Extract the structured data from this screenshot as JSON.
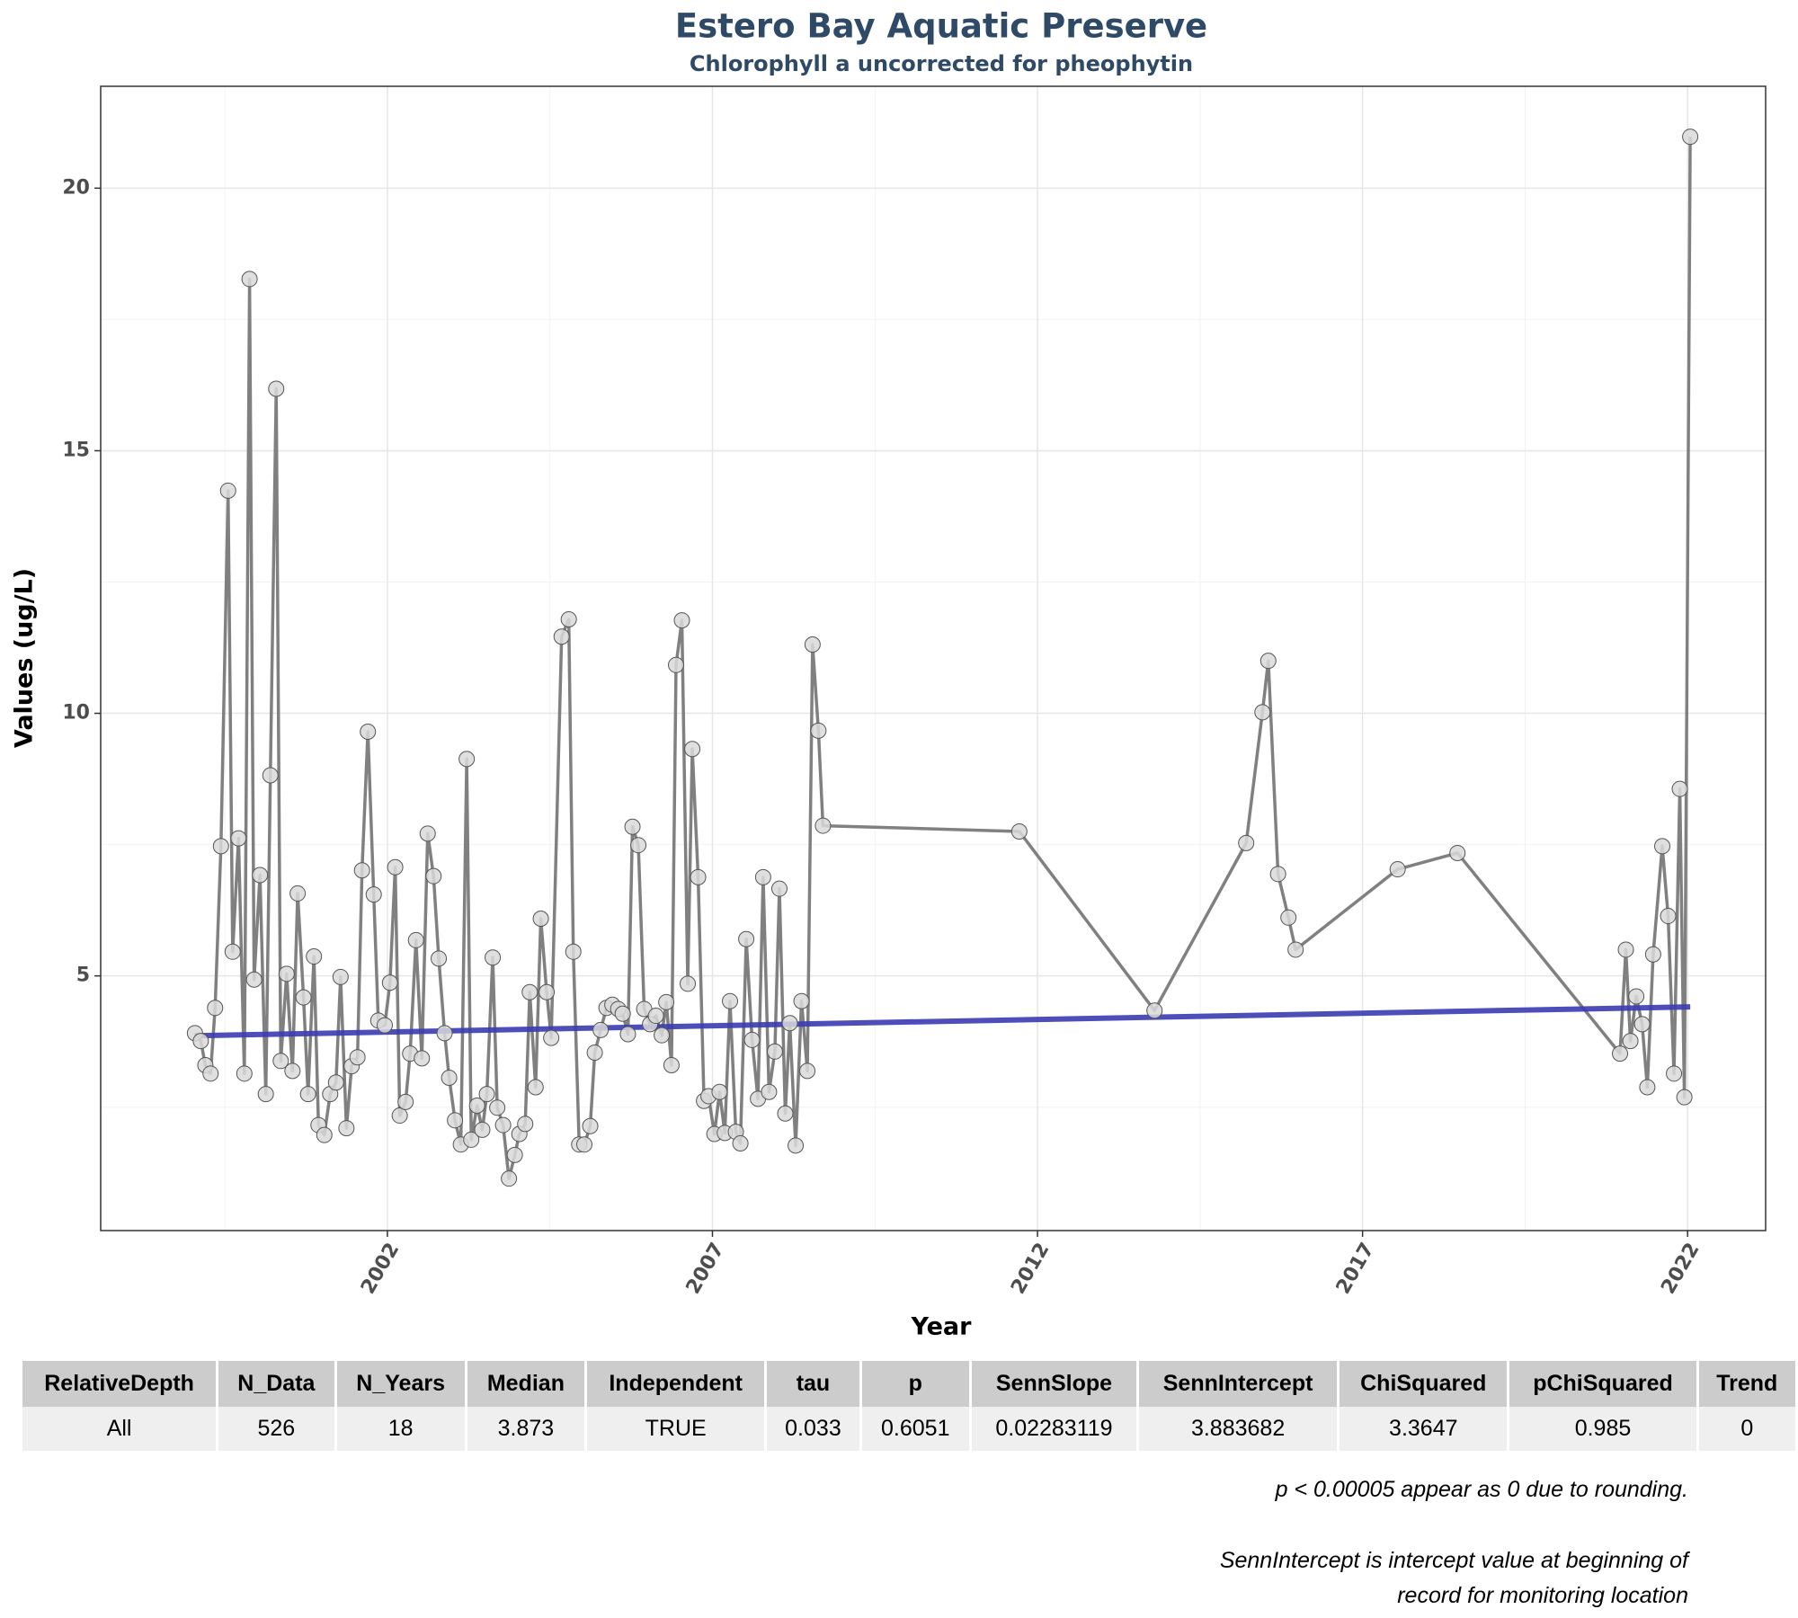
{
  "chart_data": {
    "type": "line",
    "title": "Estero Bay Aquatic Preserve",
    "subtitle": "Chlorophyll a uncorrected for pheophytin",
    "x_label": "Year",
    "y_label": "Values (ug/L)",
    "xlim": [
      1997.59,
      2023.2
    ],
    "xticks": [
      2002,
      2007,
      2012,
      2017,
      2022
    ],
    "ylim": [
      0.15,
      21.94
    ],
    "yticks": [
      5,
      10,
      15,
      20
    ],
    "grid": true,
    "x": [
      1999.04,
      1999.13,
      1999.2,
      1999.28,
      1999.35,
      1999.44,
      1999.55,
      1999.62,
      1999.71,
      1999.8,
      1999.88,
      1999.95,
      2000.04,
      2000.13,
      2000.2,
      2000.29,
      2000.36,
      2000.45,
      2000.54,
      2000.62,
      2000.71,
      2000.78,
      2000.87,
      2000.94,
      2001.03,
      2001.12,
      2001.21,
      2001.28,
      2001.37,
      2001.45,
      2001.54,
      2001.61,
      2001.7,
      2001.79,
      2001.86,
      2001.96,
      2002.04,
      2002.12,
      2002.19,
      2002.28,
      2002.35,
      2002.44,
      2002.53,
      2002.62,
      2002.71,
      2002.79,
      2002.88,
      2002.95,
      2003.04,
      2003.13,
      2003.22,
      2003.29,
      2003.38,
      2003.46,
      2003.53,
      2003.62,
      2003.69,
      2003.78,
      2003.87,
      2003.96,
      2004.03,
      2004.12,
      2004.19,
      2004.28,
      2004.36,
      2004.45,
      2004.52,
      2004.68,
      2004.79,
      2004.86,
      2004.95,
      2005.03,
      2005.12,
      2005.19,
      2005.28,
      2005.37,
      2005.46,
      2005.55,
      2005.62,
      2005.7,
      2005.77,
      2005.86,
      2005.95,
      2006.04,
      2006.13,
      2006.22,
      2006.29,
      2006.37,
      2006.44,
      2006.53,
      2006.62,
      2006.69,
      2006.78,
      2006.87,
      2006.94,
      2007.03,
      2007.11,
      2007.19,
      2007.27,
      2007.36,
      2007.43,
      2007.52,
      2007.61,
      2007.7,
      2007.78,
      2007.87,
      2007.96,
      2008.03,
      2008.12,
      2008.19,
      2008.28,
      2008.37,
      2008.46,
      2008.54,
      2008.63,
      2008.7,
      2011.72,
      2013.8,
      2015.21,
      2015.46,
      2015.55,
      2015.7,
      2015.86,
      2015.97,
      2017.54,
      2018.46,
      2020.96,
      2021.05,
      2021.12,
      2021.21,
      2021.3,
      2021.38,
      2021.47,
      2021.61,
      2021.7,
      2021.79,
      2021.88,
      2021.95,
      2022.04
    ],
    "series": [
      {
        "color": "#808080",
        "values": [
          3.91,
          3.76,
          3.3,
          3.14,
          4.39,
          7.47,
          14.24,
          5.46,
          7.62,
          3.14,
          18.27,
          4.93,
          6.92,
          2.75,
          8.82,
          16.18,
          3.38,
          5.04,
          3.19,
          6.57,
          4.59,
          2.75,
          5.37,
          2.16,
          1.97,
          2.75,
          2.97,
          4.98,
          2.1,
          3.28,
          3.45,
          7.01,
          9.65,
          6.55,
          4.15,
          4.06,
          4.87,
          7.07,
          2.34,
          2.6,
          3.52,
          5.68,
          3.43,
          7.71,
          6.9,
          5.33,
          3.91,
          3.06,
          2.25,
          1.79,
          9.13,
          1.88,
          2.53,
          2.07,
          2.75,
          5.35,
          2.49,
          2.16,
          1.14,
          1.59,
          1.99,
          2.18,
          4.69,
          2.88,
          6.09,
          4.69,
          3.82,
          11.46,
          11.79,
          5.46,
          1.79,
          1.79,
          2.14,
          3.54,
          3.97,
          4.39,
          4.45,
          4.37,
          4.28,
          3.89,
          7.84,
          7.49,
          4.37,
          4.08,
          4.24,
          3.87,
          4.5,
          3.3,
          10.92,
          11.77,
          4.85,
          9.32,
          6.88,
          2.62,
          2.71,
          1.99,
          2.79,
          2.01,
          4.52,
          2.03,
          1.81,
          5.7,
          3.78,
          2.66,
          6.88,
          2.79,
          3.56,
          6.66,
          2.38,
          4.1,
          1.77,
          4.52,
          3.19,
          11.31,
          9.67,
          7.86,
          7.75,
          4.34,
          7.53,
          10.02,
          11.0,
          6.94,
          6.11,
          5.5,
          7.03,
          7.34,
          3.52,
          5.5,
          3.76,
          4.61,
          4.08,
          2.88,
          5.41,
          7.47,
          6.14,
          3.14,
          8.56,
          2.69,
          20.98
        ]
      },
      {
        "color": "#3b3bb3",
        "x": [
          1999.04,
          2022.04
        ],
        "values": [
          3.86,
          4.41
        ]
      }
    ]
  },
  "table": {
    "columns": [
      "RelativeDepth",
      "N_Data",
      "N_Years",
      "Median",
      "Independent",
      "tau",
      "p",
      "SennSlope",
      "SennIntercept",
      "ChiSquared",
      "pChiSquared",
      "Trend"
    ],
    "rows": [
      [
        "All",
        526,
        18,
        3.873,
        "TRUE",
        0.033,
        0.6051,
        0.02283119,
        3.883682,
        3.3647,
        0.985,
        0
      ]
    ]
  },
  "notes": [
    "p < 0.00005 appear as 0 due to rounding.",
    "SennIntercept is intercept value at beginning of",
    "record for monitoring location"
  ]
}
